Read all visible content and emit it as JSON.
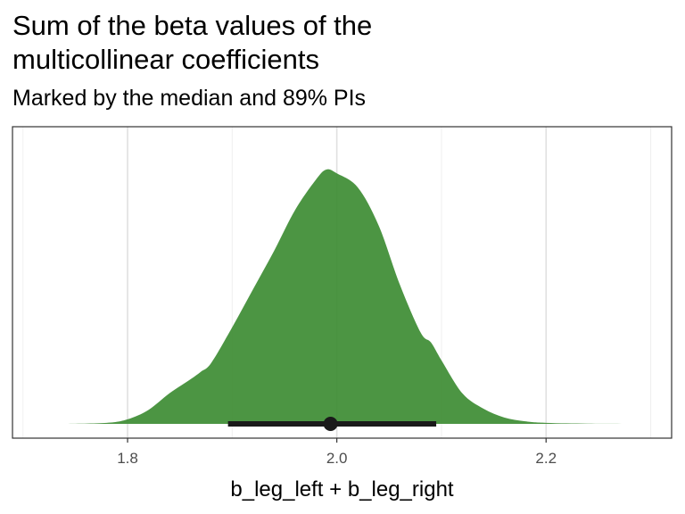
{
  "chart_data": {
    "type": "area",
    "title": "Sum of the beta values of the\nmulticollinear coefficients",
    "subtitle": "Marked by the median and 89% PIs",
    "xlabel": "b_leg_left + b_leg_right",
    "ylabel": "",
    "xlim": [
      1.69,
      2.32
    ],
    "x_ticks": [
      1.8,
      2.0,
      2.2
    ],
    "x_tick_labels": [
      "1.8",
      "2.0",
      "2.2"
    ],
    "grid": "vertical",
    "fill_color": "#3d8c33",
    "interval_color": "#1a1a1a",
    "density": {
      "x": [
        1.74,
        1.78,
        1.8,
        1.82,
        1.84,
        1.86,
        1.87,
        1.88,
        1.9,
        1.92,
        1.94,
        1.96,
        1.98,
        1.99,
        2.0,
        2.02,
        2.04,
        2.06,
        2.08,
        2.09,
        2.1,
        2.12,
        2.14,
        2.16,
        2.18,
        2.2,
        2.24,
        2.3
      ],
      "y": [
        0.0,
        0.004,
        0.018,
        0.055,
        0.12,
        0.175,
        0.205,
        0.24,
        0.38,
        0.53,
        0.68,
        0.84,
        0.96,
        1.0,
        0.985,
        0.93,
        0.78,
        0.55,
        0.36,
        0.32,
        0.25,
        0.12,
        0.06,
        0.025,
        0.01,
        0.004,
        0.001,
        0.0
      ]
    },
    "median": 1.994,
    "interval": [
      1.896,
      2.095
    ],
    "interval_label": "89% PI"
  }
}
